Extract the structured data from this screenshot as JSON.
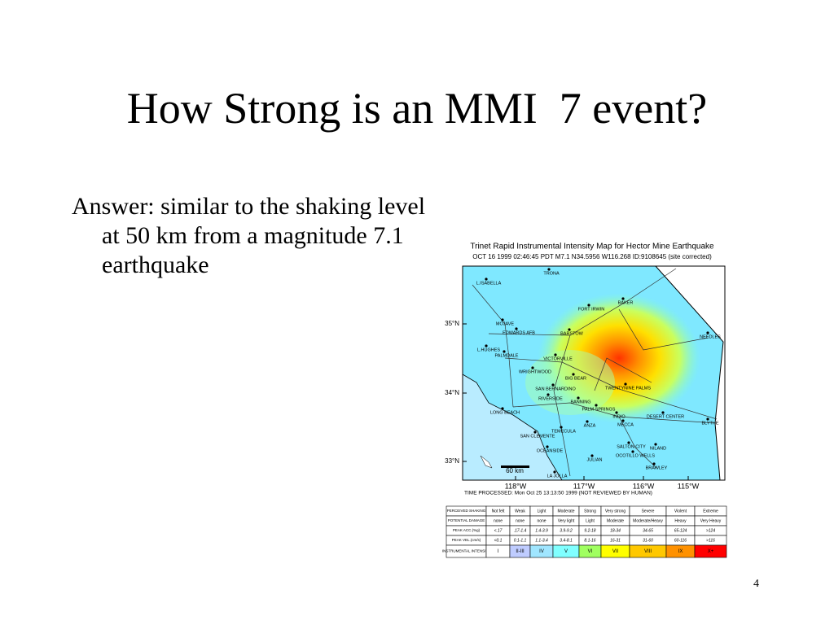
{
  "slide": {
    "title": "How Strong is an MMI  7 event?",
    "body": "Answer: similar to the shaking level at 50 km from a magnitude 7.1 earthquake",
    "page_number": "4",
    "figure": {
      "title": "Trinet Rapid Instrumental Intensity Map for Hector Mine Earthquake",
      "subtitle": "OCT 16 1999 02:46:45 PDT M7.1 N34.5956 W116.268 ID:9108645 (site corrected)",
      "lat_labels": [
        "35°N",
        "34°N",
        "33°N"
      ],
      "lon_labels": [
        "118°W",
        "117°W",
        "116°W",
        "115°W"
      ],
      "scale_label": "60 km",
      "cities": [
        "TRONA",
        "L.ISABELLA",
        "BAKER",
        "FORT IRWIN",
        "MOJAVE",
        "EDWARDS AFB",
        "BARSTOW",
        "NEEDLES",
        "L.HUGHES",
        "PALMDALE",
        "VICTORVILLE",
        "WRIGHTWOOD",
        "BIG BEAR",
        "TWENTYNINE PALMS",
        "SAN BERNARDINO",
        "RIVERSIDE",
        "BANNING",
        "PALM SPRINGS",
        "INDIO",
        "DESERT CENTER",
        "BLYTHE",
        "LONG BEACH",
        "ANZA",
        "MECCA",
        "TEMECULA",
        "SAN CLEMENTE",
        "OCEANSIDE",
        "SALTON CITY",
        "NILAND",
        "OCOTILLO WELLS",
        "JULIAN",
        "BRAWLEY",
        "LA JOLLA"
      ],
      "time_processed": "TIME PROCESSED: Mon Oct 25 13:13:50 1999 (NOT REVIEWED BY HUMAN)",
      "legend": {
        "rows": [
          {
            "label": "PERCEIVED SHAKING",
            "cells": [
              "Not felt",
              "Weak",
              "Light",
              "Moderate",
              "Strong",
              "Very strong",
              "Severe",
              "Violent",
              "Extreme"
            ]
          },
          {
            "label": "POTENTIAL DAMAGE",
            "cells": [
              "none",
              "none",
              "none",
              "Very light",
              "Light",
              "Moderate",
              "Moderate/Heavy",
              "Heavy",
              "Very Heavy"
            ]
          },
          {
            "label": "PEAK ACC.(%g)",
            "cells": [
              "<.17",
              ".17-1.4",
              "1.4-3.9",
              "3.9-9.2",
              "9.2-18",
              "18-34",
              "34-65",
              "65-124",
              ">124"
            ]
          },
          {
            "label": "PEAK VEL.(cm/s)",
            "cells": [
              "<0.1",
              "0.1-1.1",
              "1.1-3.4",
              "3.4-8.1",
              "8.1-16",
              "16-31",
              "31-60",
              "60-116",
              ">116"
            ]
          },
          {
            "label": "INSTRUMENTAL INTENSITY",
            "cells": [
              "I",
              "II-III",
              "IV",
              "V",
              "VI",
              "VII",
              "VIII",
              "IX",
              "X+"
            ]
          }
        ]
      }
    }
  }
}
